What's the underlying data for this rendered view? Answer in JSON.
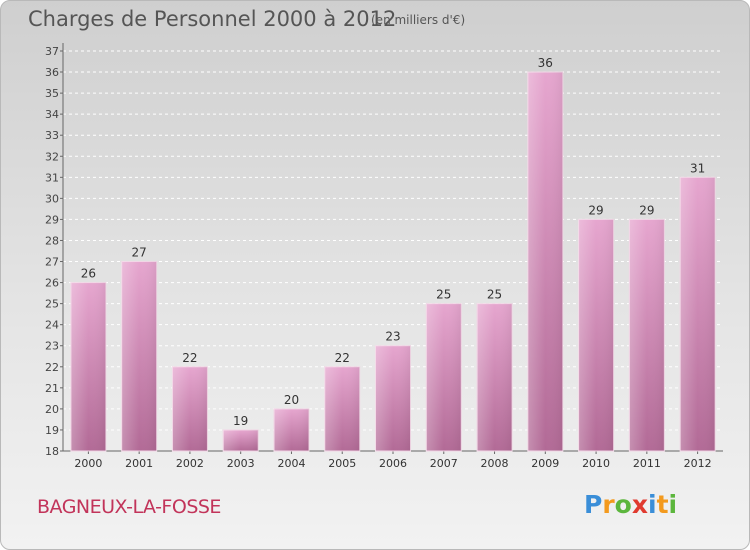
{
  "chart_data": {
    "type": "bar",
    "title": "Charges de Personnel 2000 à 2012",
    "subtitle": "(en milliers d'€)",
    "categories": [
      "2000",
      "2001",
      "2002",
      "2003",
      "2004",
      "2005",
      "2006",
      "2007",
      "2008",
      "2009",
      "2010",
      "2011",
      "2012"
    ],
    "values": [
      26,
      27,
      22,
      19,
      20,
      22,
      23,
      25,
      25,
      36,
      29,
      29,
      31
    ],
    "ylim": [
      18,
      37
    ],
    "yticks": [
      18,
      19,
      20,
      21,
      22,
      23,
      24,
      25,
      26,
      27,
      28,
      29,
      30,
      31,
      32,
      33,
      34,
      35,
      36,
      37
    ],
    "grid": true,
    "bar_color": "#d98cb8"
  },
  "commune": "BAGNEUX-LA-FOSSE",
  "logo": {
    "letters": [
      "P",
      "r",
      "o",
      "x",
      "i",
      "t",
      "i"
    ],
    "colors": [
      "#3a8ed8",
      "#f39a1e",
      "#5cb63d",
      "#e03a2f",
      "#3a8ed8",
      "#f39a1e",
      "#5cb63d"
    ]
  }
}
